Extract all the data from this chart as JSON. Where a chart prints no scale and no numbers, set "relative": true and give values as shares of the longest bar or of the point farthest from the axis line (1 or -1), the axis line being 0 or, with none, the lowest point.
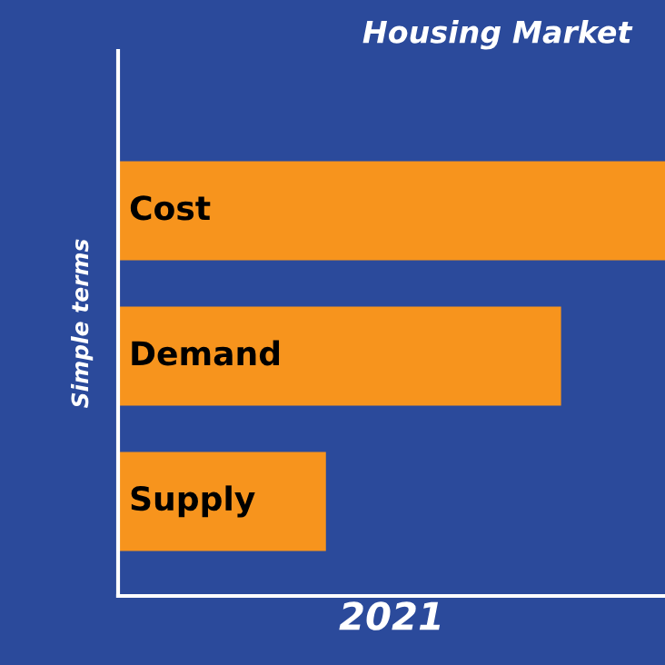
{
  "chart_data": {
    "type": "bar",
    "orientation": "horizontal",
    "relative": true,
    "title": "Housing Market",
    "xlabel": "2021",
    "ylabel": "Simple terms",
    "categories": [
      "Cost",
      "Demand",
      "Supply"
    ],
    "values": [
      1,
      0.81,
      0.38
    ],
    "color": "#f7941d"
  }
}
